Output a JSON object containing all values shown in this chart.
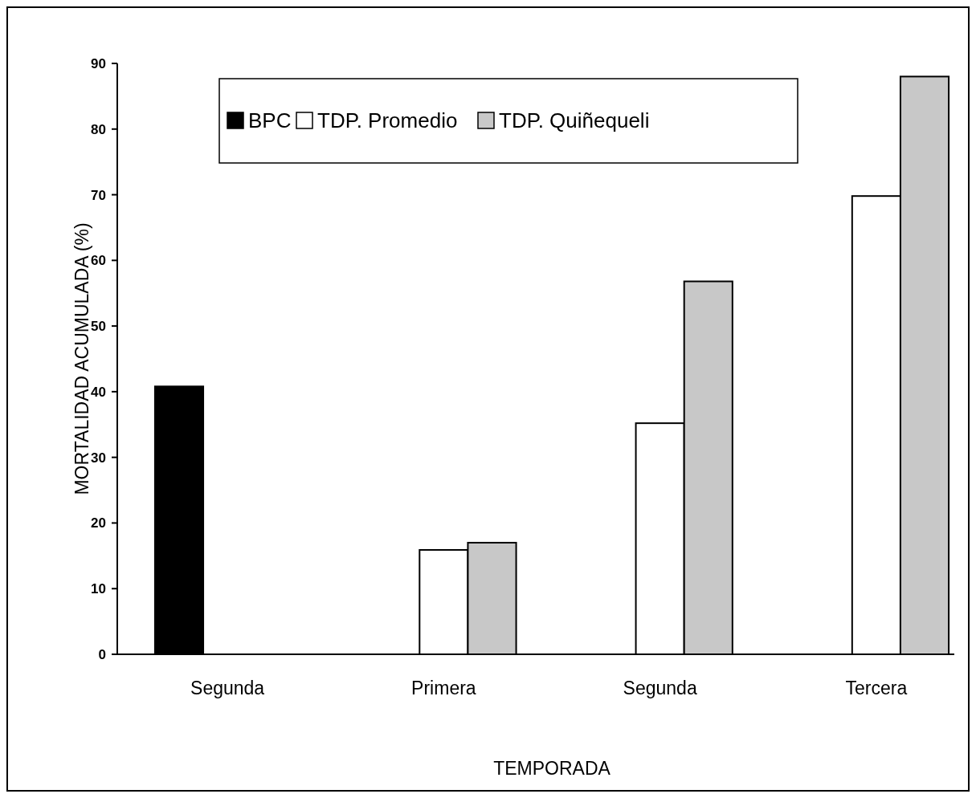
{
  "chart_data": {
    "type": "bar",
    "xlabel": "TEMPORADA",
    "ylabel": "MORTALIDAD ACUMULADA (%)",
    "categories": [
      "Segunda",
      "Primera",
      "Segunda",
      "Tercera"
    ],
    "series": [
      {
        "name": "BPC",
        "color": "#000000",
        "values": [
          40.8,
          null,
          null,
          null
        ]
      },
      {
        "name": "TDP. Promedio",
        "color": "#ffffff",
        "values": [
          null,
          15.9,
          35.2,
          69.8
        ]
      },
      {
        "name": "TDP. Quiñequeli",
        "color": "#c8c8c8",
        "values": [
          null,
          17.0,
          56.8,
          88.0
        ]
      }
    ],
    "ylim": [
      0,
      90
    ],
    "yticks": [
      0,
      10,
      20,
      30,
      40,
      50,
      60,
      70,
      80,
      90
    ],
    "grid": false,
    "legend": "top"
  }
}
